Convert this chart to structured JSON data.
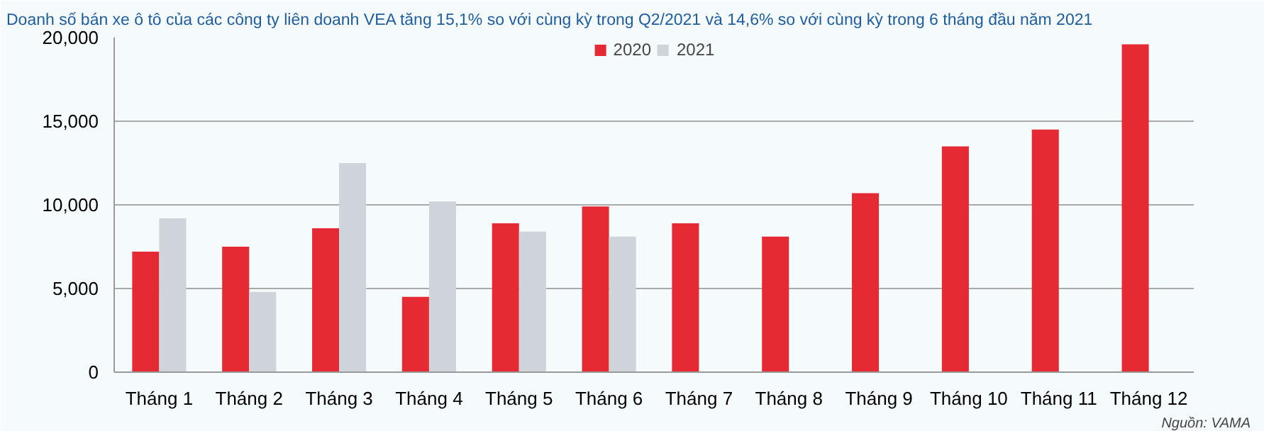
{
  "chart_data": {
    "type": "bar",
    "title": "Doanh số bán xe ô tô của các công ty liên doanh VEA tăng 15,1% so với cùng kỳ trong Q2/2021 và 14,6% so với cùng kỳ trong 6 tháng đầu năm 2021",
    "categories": [
      "Tháng 1",
      "Tháng 2",
      "Tháng 3",
      "Tháng 4",
      "Tháng 5",
      "Tháng 6",
      "Tháng 7",
      "Tháng 8",
      "Tháng 9",
      "Tháng 10",
      "Tháng 11",
      "Tháng 12"
    ],
    "series": [
      {
        "name": "2020",
        "color": "#e52a33",
        "values": [
          7200,
          7500,
          8600,
          4500,
          8900,
          9900,
          8900,
          8100,
          10700,
          13500,
          14500,
          19600
        ]
      },
      {
        "name": "2021",
        "color": "#cfd3da",
        "values": [
          9200,
          4800,
          12500,
          10200,
          8400,
          8100,
          null,
          null,
          null,
          null,
          null,
          null
        ]
      }
    ],
    "ylim": [
      0,
      20000
    ],
    "yticks": [
      {
        "value": 0,
        "label": "0"
      },
      {
        "value": 5000,
        "label": "5,000"
      },
      {
        "value": 10000,
        "label": "10,000"
      },
      {
        "value": 15000,
        "label": "15,000"
      },
      {
        "value": 20000,
        "label": "20,000"
      }
    ],
    "grid": "y",
    "legend": "top",
    "annotations": [
      "Nguồn: VAMA"
    ]
  }
}
